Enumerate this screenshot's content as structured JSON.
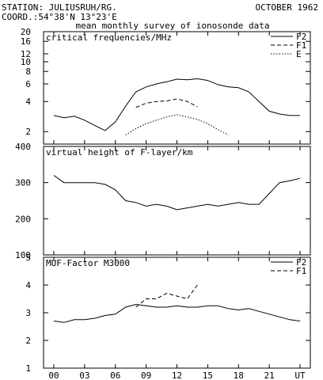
{
  "header": {
    "station": "STATION: JULIUSRUH/RG.",
    "date": "OCTOBER 1962",
    "coord": "COORD.:54°38'N 13°23'E",
    "subtitle": "mean monthly survey of ionosonde data"
  },
  "chart_data": [
    {
      "type": "line",
      "title": "critical frequencies/MHz",
      "yscale": "log",
      "ylim": [
        1.5,
        20
      ],
      "xlim": [
        -1,
        25
      ],
      "y_ticks": [
        2,
        4,
        6,
        8,
        10,
        12,
        16,
        20
      ],
      "x_ticks": [
        0,
        3,
        6,
        9,
        12,
        15,
        18,
        21,
        24
      ],
      "legend_position": "top-right",
      "series": [
        {
          "name": "F2",
          "dash": "",
          "x": [
            0,
            1,
            2,
            3,
            4,
            5,
            6,
            7,
            8,
            9,
            10,
            11,
            12,
            13,
            14,
            15,
            16,
            17,
            18,
            19,
            20,
            21,
            22,
            23,
            24
          ],
          "y": [
            2.9,
            2.75,
            2.85,
            2.6,
            2.3,
            2.05,
            2.5,
            3.6,
            5.0,
            5.6,
            6.0,
            6.3,
            6.7,
            6.6,
            6.75,
            6.5,
            5.9,
            5.6,
            5.5,
            5.0,
            4.0,
            3.2,
            3.0,
            2.9,
            2.9
          ]
        },
        {
          "name": "F1",
          "dash": "5,3",
          "x": [
            8,
            9,
            10,
            11,
            12,
            13,
            14
          ],
          "y": [
            3.5,
            3.85,
            4.0,
            4.05,
            4.25,
            4.0,
            3.55
          ]
        },
        {
          "name": "E",
          "dash": "1.5,2",
          "x": [
            7,
            8,
            9,
            10,
            11,
            12,
            13,
            14,
            15,
            16,
            17
          ],
          "y": [
            1.85,
            2.15,
            2.4,
            2.6,
            2.8,
            2.95,
            2.8,
            2.65,
            2.4,
            2.1,
            1.85
          ]
        }
      ]
    },
    {
      "type": "line",
      "title": "virtual height of F-layer/km",
      "ylim": [
        100,
        400
      ],
      "xlim": [
        -1,
        25
      ],
      "y_ticks": [
        100,
        200,
        300,
        400
      ],
      "x_ticks": [
        0,
        3,
        6,
        9,
        12,
        15,
        18,
        21,
        24
      ],
      "series": [
        {
          "dash": "",
          "x": [
            0,
            1,
            2,
            3,
            4,
            5,
            6,
            7,
            8,
            9,
            10,
            11,
            12,
            13,
            14,
            15,
            16,
            17,
            18,
            19,
            20,
            21,
            22,
            23,
            24
          ],
          "y": [
            320,
            300,
            300,
            300,
            300,
            295,
            280,
            250,
            245,
            235,
            240,
            235,
            225,
            230,
            235,
            240,
            235,
            240,
            245,
            240,
            240,
            270,
            300,
            305,
            312
          ]
        }
      ]
    },
    {
      "type": "line",
      "title": "MUF-Factor M3000",
      "ylim": [
        1,
        5
      ],
      "xlim": [
        -1,
        25
      ],
      "y_ticks": [
        1,
        2,
        3,
        4,
        5
      ],
      "x_ticks": [
        0,
        3,
        6,
        9,
        12,
        15,
        18,
        21,
        24
      ],
      "x_tick_labels": [
        "00",
        "03",
        "06",
        "09",
        "12",
        "15",
        "18",
        "21",
        "UT"
      ],
      "legend_position": "top-right",
      "series": [
        {
          "name": "F2",
          "dash": "",
          "x": [
            0,
            1,
            2,
            3,
            4,
            5,
            6,
            7,
            8,
            9,
            10,
            11,
            12,
            13,
            14,
            15,
            16,
            17,
            18,
            19,
            20,
            21,
            22,
            23,
            24
          ],
          "y": [
            2.7,
            2.65,
            2.75,
            2.75,
            2.8,
            2.9,
            2.95,
            3.2,
            3.3,
            3.25,
            3.2,
            3.2,
            3.25,
            3.2,
            3.2,
            3.25,
            3.25,
            3.15,
            3.1,
            3.15,
            3.05,
            2.95,
            2.85,
            2.75,
            2.7
          ]
        },
        {
          "name": "F1",
          "dash": "5,3",
          "x": [
            8,
            9,
            10,
            11,
            12,
            13,
            14
          ],
          "y": [
            3.2,
            3.5,
            3.5,
            3.7,
            3.6,
            3.5,
            4.0
          ]
        }
      ]
    }
  ]
}
